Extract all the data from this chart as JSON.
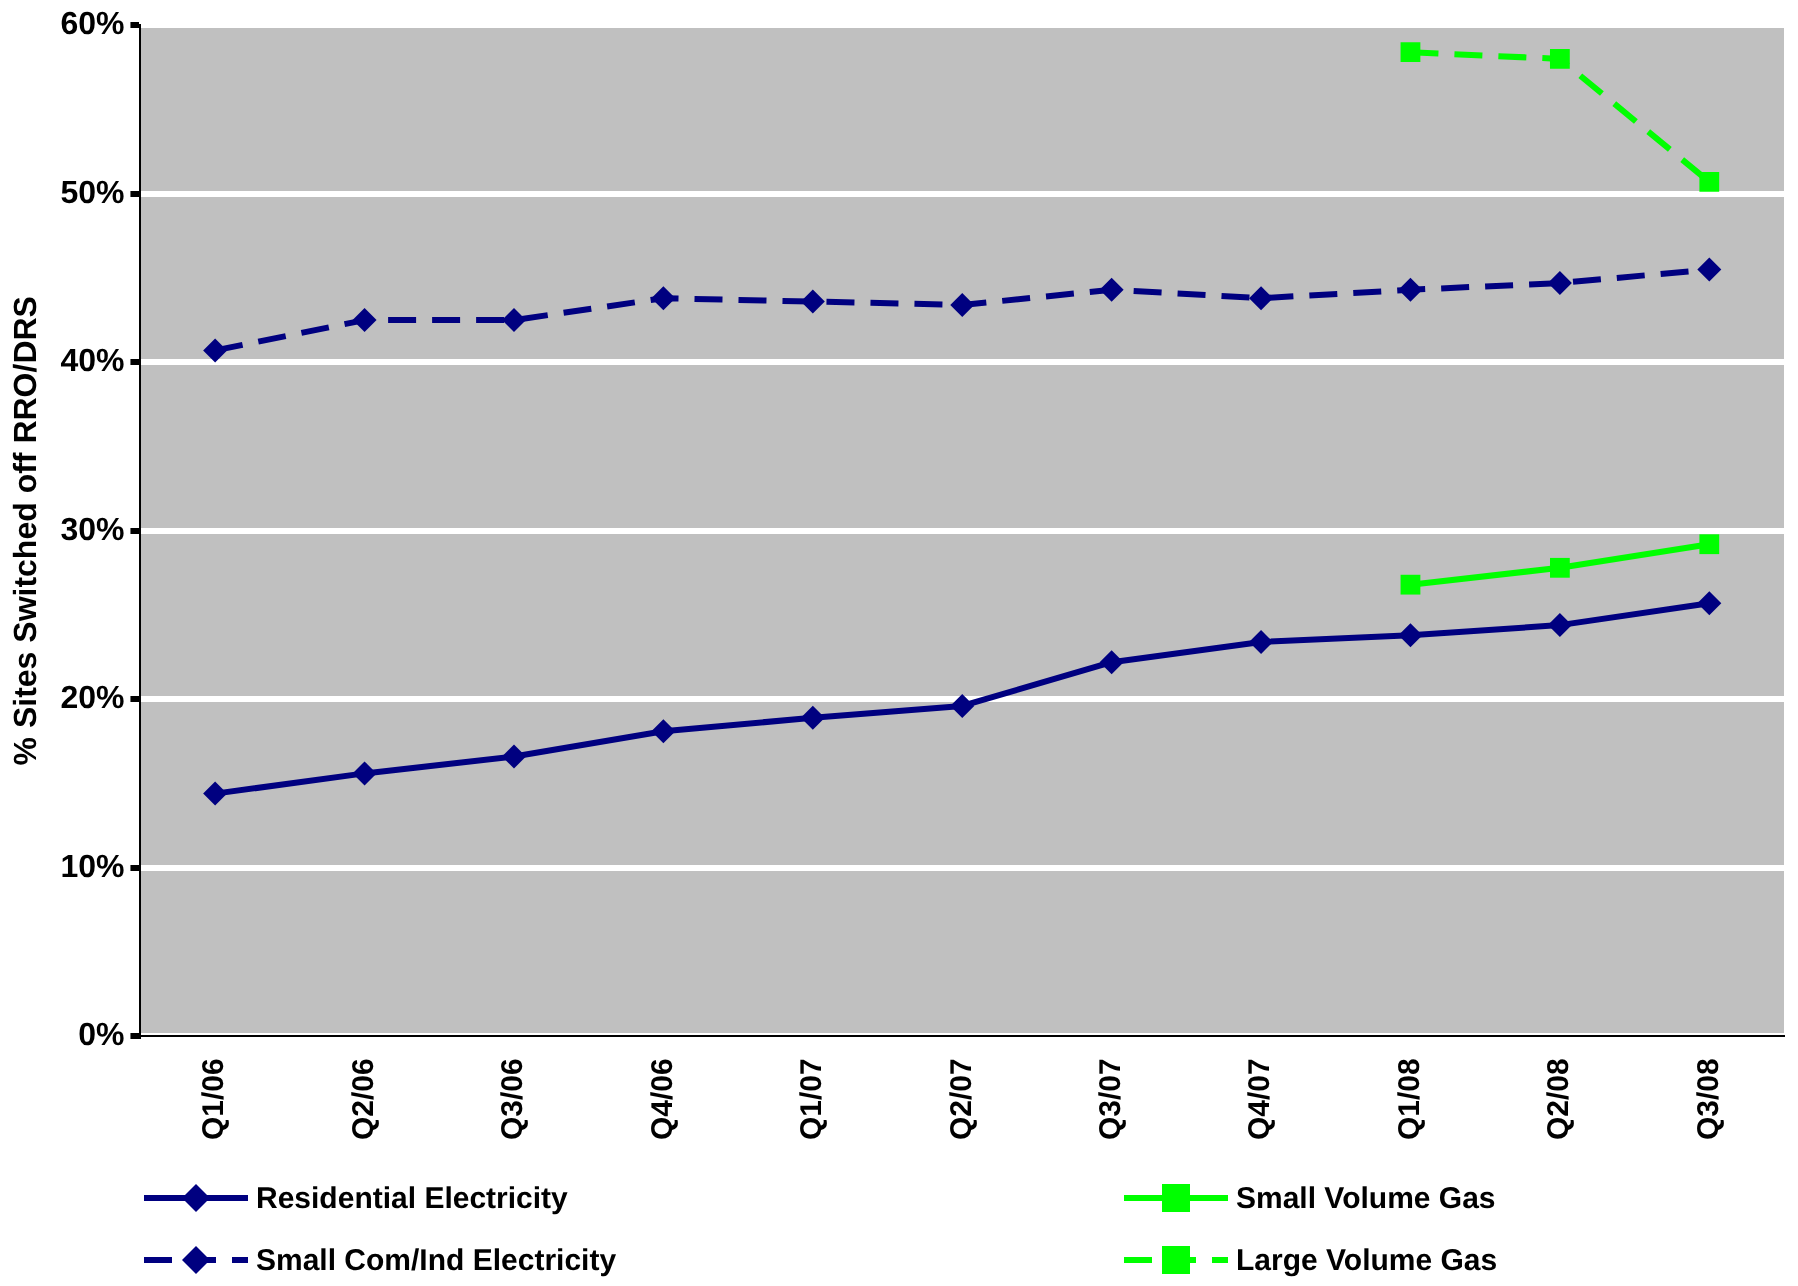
{
  "chart_data": {
    "type": "line",
    "ylabel": "% Sites Switched off RRO/DRS",
    "categories": [
      "Q1/06",
      "Q2/06",
      "Q3/06",
      "Q4/06",
      "Q1/07",
      "Q2/07",
      "Q3/07",
      "Q4/07",
      "Q1/08",
      "Q2/08",
      "Q3/08"
    ],
    "series": [
      {
        "name": "Residential Electricity",
        "color": "#000080",
        "marker": "diamond",
        "line_style": "solid",
        "values": [
          14.4,
          15.6,
          16.6,
          18.1,
          18.9,
          19.6,
          22.2,
          23.4,
          23.8,
          24.4,
          25.7
        ]
      },
      {
        "name": "Small Com/Ind Electricity",
        "color": "#000080",
        "marker": "diamond",
        "line_style": "dashed",
        "values": [
          40.7,
          42.5,
          42.5,
          43.8,
          43.6,
          43.4,
          44.3,
          43.8,
          44.3,
          44.7,
          45.5
        ]
      },
      {
        "name": "Small Volume Gas",
        "color": "#00ff00",
        "marker": "square",
        "line_style": "solid",
        "values": [
          null,
          null,
          null,
          null,
          null,
          null,
          null,
          null,
          26.8,
          27.8,
          29.2
        ]
      },
      {
        "name": "Large Volume Gas",
        "color": "#00ff00",
        "marker": "square",
        "line_style": "dashed",
        "values": [
          null,
          null,
          null,
          null,
          null,
          null,
          null,
          null,
          58.4,
          58.0,
          50.7
        ]
      }
    ],
    "ylim": [
      0,
      60
    ],
    "yticks": [
      {
        "value": 0,
        "label": "0%"
      },
      {
        "value": 10,
        "label": "10%"
      },
      {
        "value": 20,
        "label": "20%"
      },
      {
        "value": 30,
        "label": "30%"
      },
      {
        "value": 40,
        "label": "40%"
      },
      {
        "value": 50,
        "label": "50%"
      },
      {
        "value": 60,
        "label": "60%"
      }
    ],
    "grid": "y",
    "legend": "bottom"
  }
}
